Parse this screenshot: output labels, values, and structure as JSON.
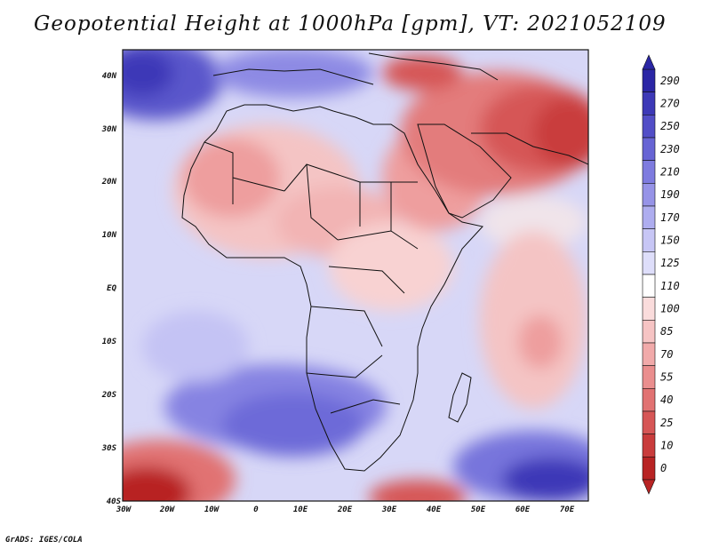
{
  "title": "Geopotential Height at 1000hPa [gpm], VT: 2021052109",
  "credit": "GrADS: IGES/COLA",
  "y_axis_labels": [
    "40N",
    "30N",
    "20N",
    "10N",
    "EQ",
    "10S",
    "20S",
    "30S",
    "40S"
  ],
  "x_axis_labels": [
    "30W",
    "20W",
    "10W",
    "0",
    "10E",
    "20E",
    "30E",
    "40E",
    "50E",
    "60E",
    "70E"
  ],
  "colorbar": {
    "levels": [
      "290",
      "270",
      "250",
      "230",
      "210",
      "190",
      "170",
      "150",
      "125",
      "110",
      "100",
      "85",
      "70",
      "55",
      "40",
      "25",
      "10",
      "0"
    ],
    "colors": [
      "#2b26a5",
      "#3d39b7",
      "#524ec7",
      "#6764d4",
      "#7e7bdf",
      "#9693e7",
      "#aeadef",
      "#c7c6f5",
      "#dedefa",
      "#ffffff",
      "#fadcdc",
      "#f6c4c4",
      "#f1aaaa",
      "#ea8e8e",
      "#e17272",
      "#d65656",
      "#c93c3c",
      "#b82424"
    ]
  }
}
